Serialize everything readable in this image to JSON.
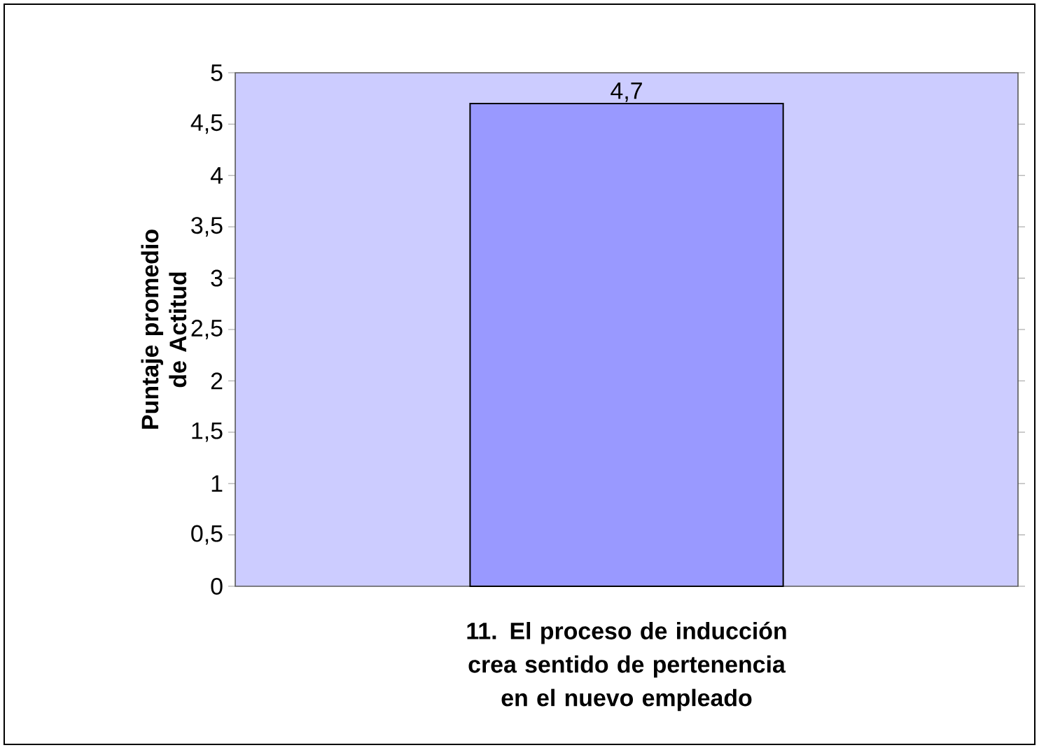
{
  "chart_data": {
    "type": "bar",
    "xlabel": "11. El proceso de inducción crea sentido de pertenencia en el nuevo empleado",
    "ylabel": "Puntaje promedio de Actitud",
    "categories": [
      null
    ],
    "values": [
      4.7
    ],
    "color": "#9999ff",
    "value_labels": [
      "4,7"
    ],
    "ylim": [
      0,
      5
    ],
    "yticks": [
      0,
      {
        "value": 0.5,
        "label": "0,5"
      },
      1,
      {
        "value": 1.5,
        "label": "1,5"
      },
      2,
      {
        "value": 2.5,
        "label": "2,5"
      },
      3,
      {
        "value": 3.5,
        "label": "3,5"
      },
      4,
      {
        "value": 4.5,
        "label": "4,5"
      },
      5
    ],
    "grid": false,
    "legend": false
  }
}
